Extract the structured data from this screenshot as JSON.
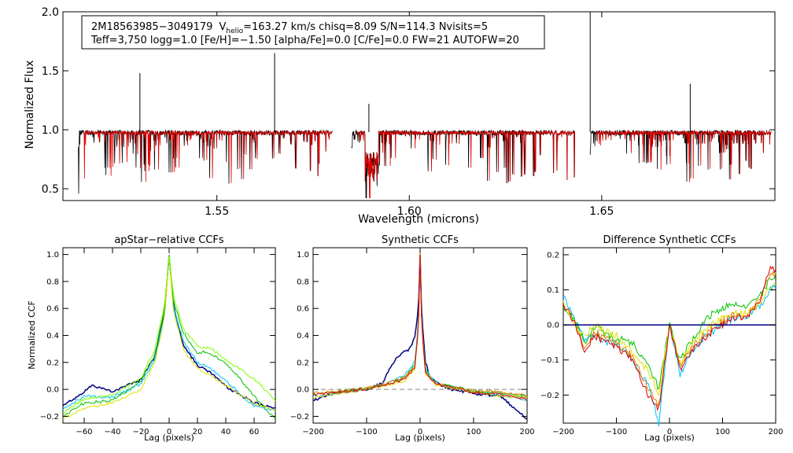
{
  "chart_data": [
    {
      "type": "line",
      "id": "spectrum",
      "xlabel": "Wavelength (microns)",
      "ylabel": "Normalized Flux",
      "xlim": [
        1.51,
        1.695
      ],
      "ylim": [
        0.4,
        2.0
      ],
      "x_ticks": [
        "1.55",
        "1.60",
        "1.65"
      ],
      "x_tick_values": [
        1.55,
        1.6,
        1.65
      ],
      "y_ticks": [
        "0.5",
        "1.0",
        "1.5",
        "2.0"
      ],
      "y_tick_values": [
        0.5,
        1.0,
        1.5,
        2.0
      ],
      "info_box": {
        "line1": {
          "star_id": "2M18563985−3049179",
          "v": "V",
          "v_sub": "helio",
          "rest": "=163.27 km/s  chisq=8.09  S/N=114.3  Nvisits=5"
        },
        "line2": "Teff=3,750 logg=1.0 [Fe/H]=−1.50 [alpha/Fe]=0.0 [C/Fe]=0.0 FW=21 AUTOFW=20"
      },
      "chips": [
        [
          1.514,
          1.58
        ],
        [
          1.585,
          1.643
        ],
        [
          1.647,
          1.694
        ]
      ],
      "series": [
        {
          "name": "observed",
          "color": "#000000",
          "noise": 0.022,
          "seed": 11
        },
        {
          "name": "synthetic",
          "color": "#e00000",
          "noise": 0.015,
          "seed": 11
        }
      ],
      "emission_spikes": [
        {
          "x": 1.53,
          "y": 1.48
        },
        {
          "x": 1.565,
          "y": 1.65
        },
        {
          "x": 1.5895,
          "y": 1.22
        },
        {
          "x": 1.647,
          "y": 2.0
        },
        {
          "x": 1.673,
          "y": 1.39
        }
      ]
    },
    {
      "type": "line",
      "id": "ccf-apstar",
      "title": "apStar−relative CCFs",
      "xlabel": "Lag (pixels)",
      "ylabel": "Normalized CCF",
      "xlim": [
        -75,
        75
      ],
      "ylim": [
        -0.25,
        1.05
      ],
      "x_ticks": [
        "−60",
        "−40",
        "−20",
        "0",
        "20",
        "40",
        "60"
      ],
      "x_tick_values": [
        -60,
        -40,
        -20,
        0,
        20,
        40,
        60
      ],
      "y_ticks": [
        "−0.2",
        "0.0",
        "0.2",
        "0.4",
        "0.6",
        "0.8",
        "1.0"
      ],
      "y_tick_values": [
        -0.2,
        0.0,
        0.2,
        0.4,
        0.6,
        0.8,
        1.0
      ],
      "series": [
        {
          "name": "visit-1",
          "color": "#000080",
          "width": 1.5,
          "x": [
            -75,
            -60,
            -55,
            -40,
            -20,
            -10,
            -3,
            0,
            3,
            10,
            20,
            30,
            40,
            55,
            60,
            75
          ],
          "values": [
            -0.12,
            -0.02,
            0.03,
            -0.02,
            0.07,
            0.25,
            0.6,
            1.0,
            0.62,
            0.32,
            0.18,
            0.12,
            0.02,
            -0.07,
            -0.1,
            -0.14
          ]
        },
        {
          "name": "visit-2",
          "color": "#00c0ff",
          "width": 1,
          "x": [
            -75,
            -60,
            -40,
            -20,
            -10,
            -3,
            0,
            3,
            10,
            20,
            30,
            40,
            55,
            60,
            75
          ],
          "values": [
            -0.15,
            -0.05,
            -0.06,
            0.04,
            0.22,
            0.57,
            1.0,
            0.6,
            0.36,
            0.2,
            0.15,
            0.07,
            -0.08,
            -0.12,
            -0.16
          ]
        },
        {
          "name": "visit-3",
          "color": "#00c000",
          "width": 1,
          "x": [
            -75,
            -60,
            -40,
            -20,
            -10,
            -3,
            0,
            3,
            10,
            20,
            25,
            35,
            45,
            60,
            75
          ],
          "values": [
            -0.2,
            -0.1,
            -0.08,
            0.06,
            0.26,
            0.62,
            1.0,
            0.66,
            0.42,
            0.27,
            0.28,
            0.23,
            0.14,
            -0.05,
            -0.22
          ]
        },
        {
          "name": "visit-4",
          "color": "#e0e000",
          "width": 1,
          "x": [
            -75,
            -60,
            -40,
            -20,
            -10,
            -3,
            0,
            3,
            10,
            20,
            30,
            40,
            60,
            75
          ],
          "values": [
            -0.22,
            -0.14,
            -0.1,
            0.0,
            0.2,
            0.55,
            1.0,
            0.58,
            0.3,
            0.15,
            0.1,
            0.03,
            -0.1,
            -0.16
          ]
        },
        {
          "name": "visit-5",
          "color": "#80ff00",
          "width": 1,
          "x": [
            -75,
            -60,
            -40,
            -20,
            -10,
            -3,
            0,
            3,
            10,
            20,
            30,
            40,
            60,
            75
          ],
          "values": [
            -0.17,
            -0.07,
            -0.04,
            0.08,
            0.3,
            0.65,
            1.0,
            0.7,
            0.45,
            0.32,
            0.3,
            0.22,
            0.08,
            -0.08
          ]
        }
      ]
    },
    {
      "type": "line",
      "id": "ccf-synthetic",
      "title": "Synthetic CCFs",
      "xlabel": "Lag (pixels)",
      "ylabel": "",
      "xlim": [
        -200,
        200
      ],
      "ylim": [
        -0.25,
        1.05
      ],
      "x_ticks": [
        "−200",
        "−100",
        "0",
        "100",
        "200"
      ],
      "x_tick_values": [
        -200,
        -100,
        0,
        100,
        200
      ],
      "y_ticks": [
        "−0.2",
        "0.0",
        "0.2",
        "0.4",
        "0.6",
        "0.8",
        "1.0"
      ],
      "y_tick_values": [
        -0.2,
        0.0,
        0.2,
        0.4,
        0.6,
        0.8,
        1.0
      ],
      "series": [
        {
          "name": "visit-1",
          "color": "#000080",
          "width": 1.5,
          "x": [
            -200,
            -150,
            -100,
            -70,
            -55,
            -40,
            -20,
            -10,
            -3,
            0,
            3,
            10,
            20,
            40,
            60,
            100,
            150,
            180,
            200
          ],
          "values": [
            -0.08,
            -0.02,
            0.0,
            0.05,
            0.17,
            0.25,
            0.3,
            0.38,
            0.6,
            1.0,
            0.55,
            0.2,
            0.08,
            0.03,
            0.0,
            -0.03,
            -0.05,
            -0.15,
            -0.22
          ]
        },
        {
          "name": "visit-2",
          "color": "#00c0ff",
          "width": 1,
          "x": [
            -200,
            -100,
            -60,
            -30,
            -10,
            -3,
            0,
            3,
            10,
            30,
            60,
            100,
            150,
            200
          ],
          "values": [
            -0.05,
            0.0,
            0.05,
            0.1,
            0.2,
            0.5,
            1.0,
            0.5,
            0.15,
            0.05,
            0.02,
            -0.02,
            -0.04,
            -0.08
          ]
        },
        {
          "name": "visit-3",
          "color": "#00c000",
          "width": 1,
          "x": [
            -200,
            -100,
            -60,
            -30,
            -10,
            -3,
            0,
            3,
            10,
            30,
            60,
            100,
            150,
            200
          ],
          "values": [
            -0.04,
            0.01,
            0.04,
            0.08,
            0.18,
            0.48,
            1.0,
            0.48,
            0.14,
            0.04,
            0.02,
            -0.01,
            -0.03,
            -0.05
          ]
        },
        {
          "name": "visit-4",
          "color": "#e0e000",
          "width": 1,
          "x": [
            -200,
            -100,
            -60,
            -30,
            -10,
            -3,
            0,
            3,
            10,
            30,
            60,
            100,
            150,
            200
          ],
          "values": [
            -0.06,
            0.0,
            0.03,
            0.06,
            0.15,
            0.45,
            1.0,
            0.45,
            0.12,
            0.03,
            0.01,
            -0.02,
            -0.05,
            -0.06
          ]
        },
        {
          "name": "visit-5",
          "color": "#e08000",
          "width": 1,
          "x": [
            -200,
            -100,
            -60,
            -30,
            -10,
            -3,
            0,
            3,
            10,
            30,
            60,
            100,
            150,
            200
          ],
          "values": [
            -0.03,
            0.01,
            0.05,
            0.09,
            0.17,
            0.47,
            1.0,
            0.47,
            0.13,
            0.04,
            0.02,
            -0.01,
            -0.02,
            -0.04
          ]
        },
        {
          "name": "visit-6",
          "color": "#e00000",
          "width": 1,
          "x": [
            -200,
            -100,
            -60,
            -30,
            -10,
            -3,
            0,
            3,
            10,
            30,
            60,
            100,
            150,
            200
          ],
          "values": [
            -0.04,
            0.0,
            0.04,
            0.07,
            0.16,
            0.46,
            1.0,
            0.46,
            0.12,
            0.04,
            0.01,
            -0.02,
            -0.04,
            -0.07
          ]
        },
        {
          "name": "template",
          "color": "#888888",
          "width": 1,
          "dash": "6,4",
          "x": [
            -200,
            -40,
            -10,
            0,
            10,
            40,
            200
          ],
          "values": [
            0.0,
            0.0,
            0.0,
            0.0,
            0.0,
            0.0,
            0.0
          ]
        }
      ]
    },
    {
      "type": "line",
      "id": "ccf-difference",
      "title": "Difference Synthetic CCFs",
      "xlabel": "Lag (pixels)",
      "ylabel": "",
      "xlim": [
        -200,
        200
      ],
      "ylim": [
        -0.28,
        0.22
      ],
      "x_ticks": [
        "−200",
        "−100",
        "0",
        "100",
        "200"
      ],
      "x_tick_values": [
        -200,
        -100,
        0,
        100,
        200
      ],
      "y_ticks": [
        "−0.2",
        "−0.1",
        "0.0",
        "0.1",
        "0.2"
      ],
      "y_tick_values": [
        -0.2,
        -0.1,
        0.0,
        0.1,
        0.2
      ],
      "series": [
        {
          "name": "diff-1",
          "color": "#00c0ff",
          "width": 1,
          "x": [
            -200,
            -180,
            -160,
            -140,
            -120,
            -100,
            -70,
            -40,
            -20,
            0,
            20,
            40,
            70,
            100,
            120,
            140,
            170,
            190,
            200
          ],
          "values": [
            0.08,
            0.02,
            -0.04,
            -0.03,
            -0.05,
            -0.05,
            -0.1,
            -0.17,
            -0.28,
            0.0,
            -0.14,
            -0.08,
            -0.03,
            0.0,
            0.02,
            0.02,
            0.05,
            0.1,
            0.12
          ]
        },
        {
          "name": "diff-2",
          "color": "#00c000",
          "width": 1,
          "x": [
            -200,
            -180,
            -160,
            -140,
            -120,
            -100,
            -70,
            -40,
            -20,
            0,
            20,
            40,
            70,
            100,
            120,
            140,
            170,
            190,
            200
          ],
          "values": [
            0.05,
            0.02,
            -0.05,
            0.0,
            -0.03,
            -0.04,
            -0.05,
            -0.12,
            -0.18,
            0.0,
            -0.1,
            -0.05,
            0.02,
            0.05,
            0.06,
            0.05,
            0.08,
            0.13,
            0.14
          ]
        },
        {
          "name": "diff-3",
          "color": "#e0e000",
          "width": 1,
          "x": [
            -200,
            -180,
            -160,
            -140,
            -120,
            -100,
            -70,
            -40,
            -20,
            0,
            20,
            40,
            70,
            100,
            120,
            140,
            170,
            190,
            200
          ],
          "values": [
            0.07,
            0.0,
            -0.03,
            0.0,
            -0.02,
            -0.03,
            -0.08,
            -0.13,
            -0.2,
            0.0,
            -0.11,
            -0.06,
            -0.01,
            0.02,
            0.04,
            0.03,
            0.06,
            0.11,
            0.13
          ]
        },
        {
          "name": "diff-4",
          "color": "#e08000",
          "width": 1,
          "x": [
            -200,
            -180,
            -160,
            -140,
            -120,
            -100,
            -70,
            -40,
            -20,
            0,
            20,
            40,
            70,
            100,
            120,
            140,
            170,
            190,
            200
          ],
          "values": [
            0.06,
            0.01,
            -0.06,
            -0.02,
            -0.04,
            -0.05,
            -0.09,
            -0.18,
            -0.23,
            0.0,
            -0.12,
            -0.07,
            -0.02,
            0.01,
            0.03,
            0.02,
            0.07,
            0.15,
            0.14
          ]
        },
        {
          "name": "diff-5",
          "color": "#e00000",
          "width": 1,
          "x": [
            -200,
            -180,
            -160,
            -140,
            -120,
            -100,
            -70,
            -40,
            -20,
            0,
            20,
            40,
            70,
            100,
            120,
            140,
            170,
            190,
            200
          ],
          "values": [
            0.06,
            0.01,
            -0.07,
            -0.03,
            -0.05,
            -0.06,
            -0.1,
            -0.2,
            -0.24,
            0.0,
            -0.13,
            -0.08,
            -0.03,
            0.0,
            0.02,
            0.02,
            0.06,
            0.17,
            0.15
          ]
        },
        {
          "name": "zero",
          "color": "#000080",
          "width": 1.5,
          "x": [
            -200,
            200
          ],
          "values": [
            0.0,
            0.0
          ]
        }
      ]
    }
  ]
}
